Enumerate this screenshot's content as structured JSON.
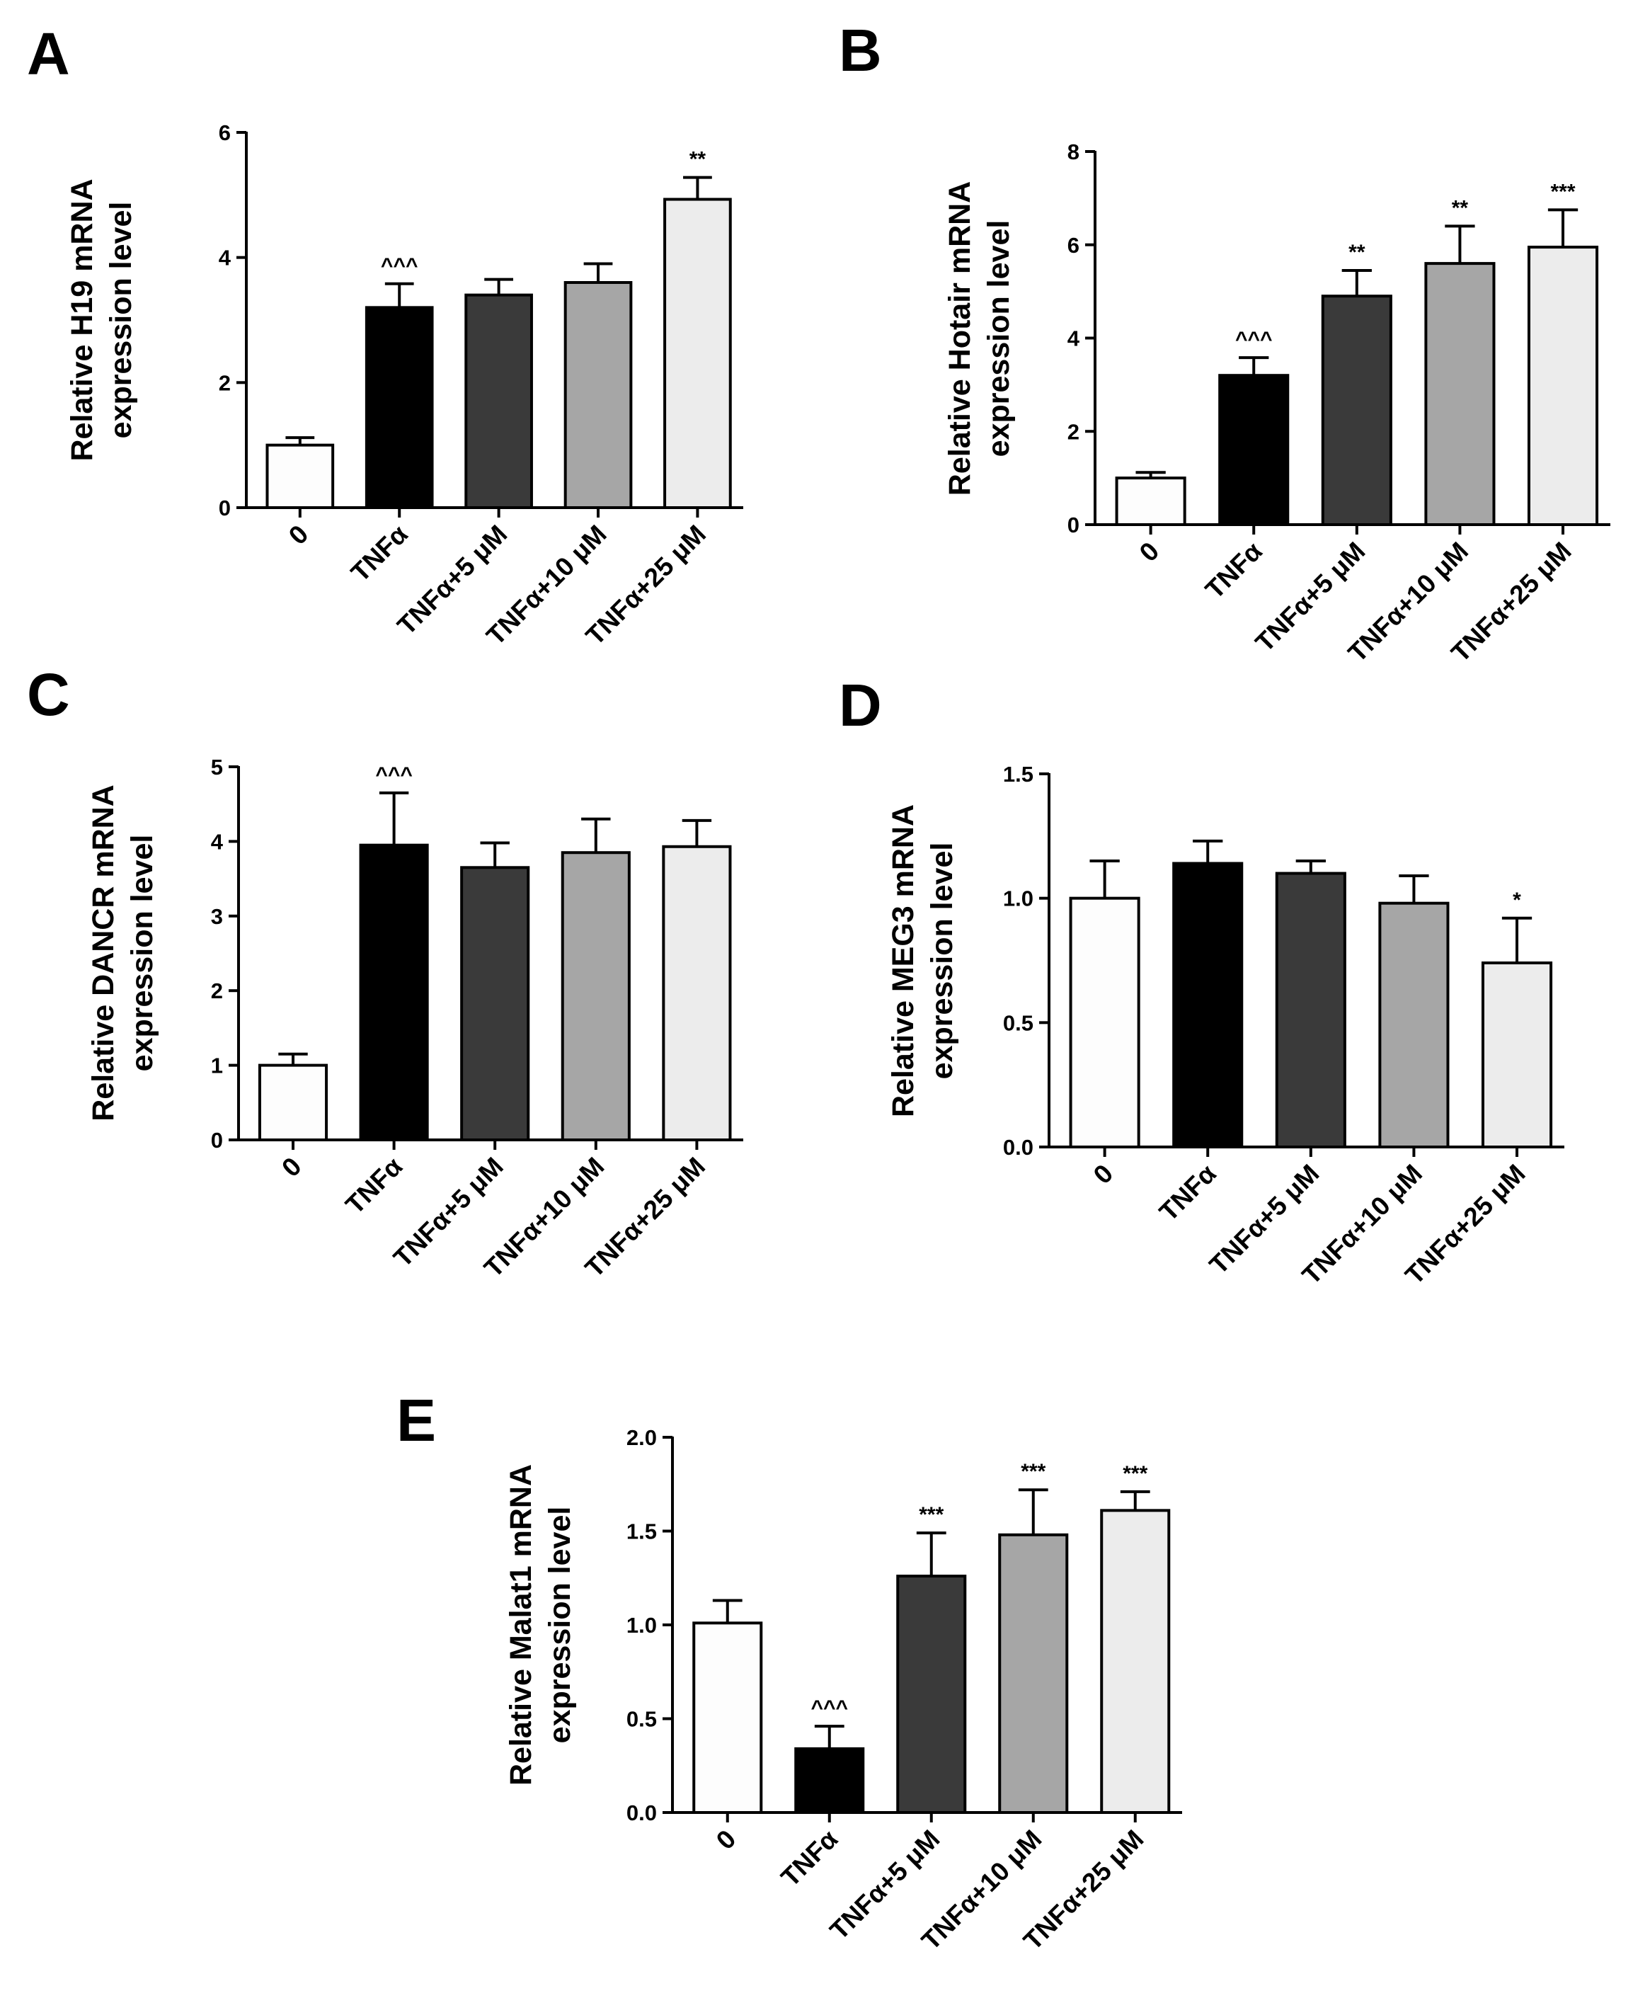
{
  "figure": {
    "categories": [
      "0",
      "TNFα",
      "TNFα+5 μM",
      "TNFα+10 μM",
      "TNFα+25 μM"
    ],
    "bar_colors": [
      "#fdfdfd",
      "#000000",
      "#3a3a3a",
      "#a6a6a6",
      "#ececec"
    ],
    "axis_color": "#000000"
  },
  "chart_data": [
    {
      "type": "bar",
      "panel": "A",
      "title": "",
      "xlabel": "",
      "ylabel": [
        "Relative H19 mRNA",
        "expression level"
      ],
      "categories": [
        "0",
        "TNFα",
        "TNFα+5 μM",
        "TNFα+10 μM",
        "TNFα+25 μM"
      ],
      "values": [
        1.0,
        3.2,
        3.4,
        3.6,
        4.93
      ],
      "errors": [
        0.12,
        0.38,
        0.25,
        0.3,
        0.35
      ],
      "significance": [
        "",
        "^^^",
        "",
        "",
        "**"
      ],
      "ylim": [
        0,
        6
      ],
      "yticks": [
        0,
        2,
        4,
        6
      ],
      "ytick_labels": [
        "0",
        "2",
        "4",
        "6"
      ]
    },
    {
      "type": "bar",
      "panel": "B",
      "title": "",
      "xlabel": "",
      "ylabel": [
        "Relative Hotair mRNA",
        "expression level"
      ],
      "categories": [
        "0",
        "TNFα",
        "TNFα+5 μM",
        "TNFα+10 μM",
        "TNFα+25 μM"
      ],
      "values": [
        1.0,
        3.2,
        4.9,
        5.6,
        5.95
      ],
      "errors": [
        0.12,
        0.38,
        0.55,
        0.8,
        0.8
      ],
      "significance": [
        "",
        "^^^",
        "**",
        "**",
        "***"
      ],
      "ylim": [
        0,
        8
      ],
      "yticks": [
        0,
        2,
        4,
        6,
        8
      ],
      "ytick_labels": [
        "0",
        "2",
        "4",
        "6",
        "8"
      ]
    },
    {
      "type": "bar",
      "panel": "C",
      "title": "",
      "xlabel": "",
      "ylabel": [
        "Relative DANCR mRNA",
        "expression level"
      ],
      "categories": [
        "0",
        "TNFα",
        "TNFα+5 μM",
        "TNFα+10 μM",
        "TNFα+25 μM"
      ],
      "values": [
        1.0,
        3.95,
        3.65,
        3.85,
        3.93
      ],
      "errors": [
        0.15,
        0.7,
        0.33,
        0.45,
        0.35
      ],
      "significance": [
        "",
        "^^^",
        "",
        "",
        ""
      ],
      "ylim": [
        0,
        5
      ],
      "yticks": [
        0,
        1,
        2,
        3,
        4,
        5
      ],
      "ytick_labels": [
        "0",
        "1",
        "2",
        "3",
        "4",
        "5"
      ]
    },
    {
      "type": "bar",
      "panel": "D",
      "title": "",
      "xlabel": "",
      "ylabel": [
        "Relative MEG3 mRNA",
        "expression level"
      ],
      "categories": [
        "0",
        "TNFα",
        "TNFα+5 μM",
        "TNFα+10 μM",
        "TNFα+25 μM"
      ],
      "values": [
        1.0,
        1.14,
        1.1,
        0.98,
        0.74
      ],
      "errors": [
        0.15,
        0.09,
        0.05,
        0.11,
        0.18
      ],
      "significance": [
        "",
        "",
        "",
        "",
        "*"
      ],
      "ylim": [
        0,
        1.5
      ],
      "yticks": [
        0,
        0.5,
        1.0,
        1.5
      ],
      "ytick_labels": [
        "0.0",
        "0.5",
        "1.0",
        "1.5"
      ]
    },
    {
      "type": "bar",
      "panel": "E",
      "title": "",
      "xlabel": "",
      "ylabel": [
        "Relative Malat1 mRNA",
        "expression level"
      ],
      "categories": [
        "0",
        "TNFα",
        "TNFα+5 μM",
        "TNFα+10 μM",
        "TNFα+25 μM"
      ],
      "values": [
        1.01,
        0.34,
        1.26,
        1.48,
        1.61
      ],
      "errors": [
        0.12,
        0.12,
        0.23,
        0.24,
        0.1
      ],
      "significance": [
        "",
        "^^^",
        "***",
        "***",
        "***"
      ],
      "ylim": [
        0,
        2.0
      ],
      "yticks": [
        0,
        0.5,
        1.0,
        1.5,
        2.0
      ],
      "ytick_labels": [
        "0.0",
        "0.5",
        "1.0",
        "1.5",
        "2.0"
      ]
    }
  ]
}
